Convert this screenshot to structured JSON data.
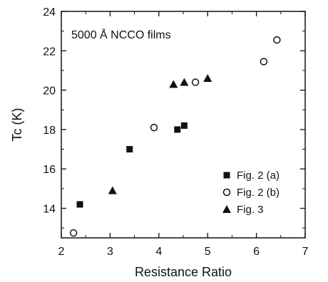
{
  "chart_data": {
    "type": "scatter",
    "annotation": "5000 Å NCCO films",
    "xlabel": "Resistance Ratio",
    "ylabel": "Tc (K)",
    "xlim": [
      2,
      7
    ],
    "ylim": [
      12.5,
      24
    ],
    "xticks": [
      2,
      3,
      4,
      5,
      6,
      7
    ],
    "yticks": [
      14,
      16,
      18,
      20,
      22,
      24
    ],
    "legend_position": "bottom-right",
    "grid": false,
    "series": [
      {
        "name": "Fig. 2 (a)",
        "marker": "square-filled",
        "points": [
          [
            2.38,
            14.2
          ],
          [
            3.4,
            17.0
          ],
          [
            4.38,
            18.0
          ],
          [
            4.52,
            18.2
          ]
        ]
      },
      {
        "name": "Fig. 2 (b)",
        "marker": "circle-open",
        "points": [
          [
            2.25,
            12.75
          ],
          [
            3.9,
            18.1
          ],
          [
            4.75,
            20.4
          ],
          [
            6.15,
            21.45
          ],
          [
            6.42,
            22.55
          ]
        ]
      },
      {
        "name": "Fig. 3",
        "marker": "triangle-filled",
        "points": [
          [
            3.05,
            14.9
          ],
          [
            4.3,
            20.3
          ],
          [
            4.52,
            20.4
          ],
          [
            5.0,
            20.6
          ]
        ]
      }
    ]
  }
}
